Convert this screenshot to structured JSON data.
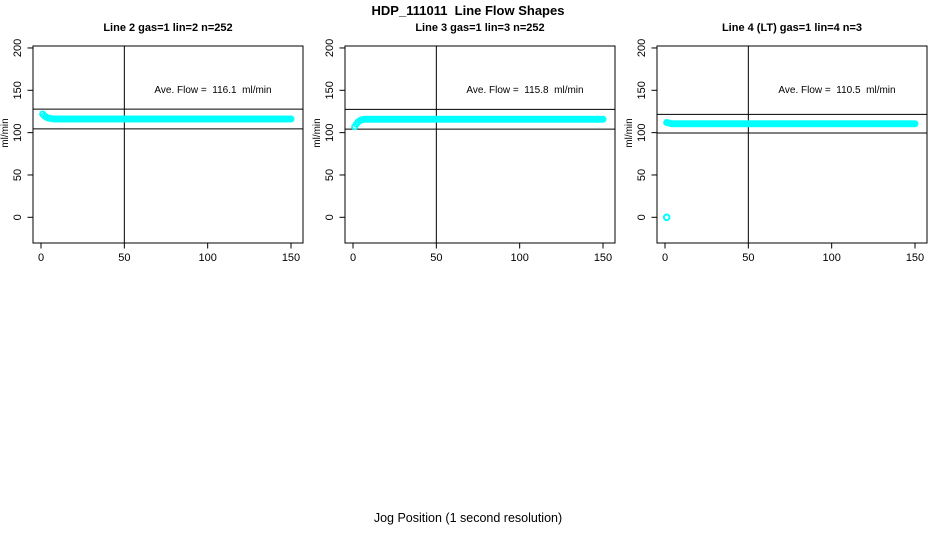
{
  "figure": {
    "title": "HDP_111011  Line Flow Shapes",
    "xlabel": "Jog Position (1 second resolution)",
    "background": "#ffffff",
    "axis_color": "#000000",
    "point_color": "#00ffff"
  },
  "chart_data": [
    {
      "type": "scatter",
      "title": "Line 2 gas=1 lin=2 n=252",
      "gas": 1,
      "lin": 2,
      "n": 252,
      "annotation": "Ave. Flow =  116.1  ml/min",
      "ave_flow": 116.1,
      "ylabel": "ml/min",
      "xlim": [
        0,
        150
      ],
      "ylim": [
        0,
        200
      ],
      "xticks": [
        0,
        50,
        100,
        150
      ],
      "yticks": [
        0,
        50,
        100,
        150,
        200
      ],
      "vline_x": 50,
      "hlines": [
        127.7,
        104.5
      ],
      "series": {
        "x_start": 1,
        "x_end": 150,
        "x_step": 1,
        "start_ys": [
          122,
          120,
          118.5,
          117.5,
          117,
          116.6,
          116.3
        ],
        "steady_y": 116.1
      },
      "outliers": []
    },
    {
      "type": "scatter",
      "title": "Line 3 gas=1 lin=3 n=252",
      "gas": 1,
      "lin": 3,
      "n": 252,
      "annotation": "Ave. Flow =  115.8  ml/min",
      "ave_flow": 115.8,
      "ylabel": "ml/min",
      "xlim": [
        0,
        150
      ],
      "ylim": [
        0,
        200
      ],
      "xticks": [
        0,
        50,
        100,
        150
      ],
      "yticks": [
        0,
        50,
        100,
        150,
        200
      ],
      "vline_x": 50,
      "hlines": [
        127.4,
        104.2
      ],
      "series": {
        "x_start": 1,
        "x_end": 150,
        "x_step": 1,
        "start_ys": [
          107,
          110,
          112.5,
          114,
          115,
          115.4
        ],
        "steady_y": 115.8
      },
      "outliers": []
    },
    {
      "type": "scatter",
      "title": "Line 4 (LT) gas=1 lin=4 n=3",
      "gas": 1,
      "lin": 4,
      "n": 3,
      "annotation": "Ave. Flow =  110.5  ml/min",
      "ave_flow": 110.5,
      "ylabel": "ml/min",
      "xlim": [
        0,
        150
      ],
      "ylim": [
        0,
        200
      ],
      "xticks": [
        0,
        50,
        100,
        150
      ],
      "yticks": [
        0,
        50,
        100,
        150,
        200
      ],
      "vline_x": 50,
      "hlines": [
        121.6,
        99.5
      ],
      "series": {
        "x_start": 1,
        "x_end": 150,
        "x_step": 1,
        "start_ys": [
          112,
          111.5,
          111
        ],
        "steady_y": 110.5
      },
      "outliers": [
        [
          1,
          0
        ]
      ]
    }
  ]
}
